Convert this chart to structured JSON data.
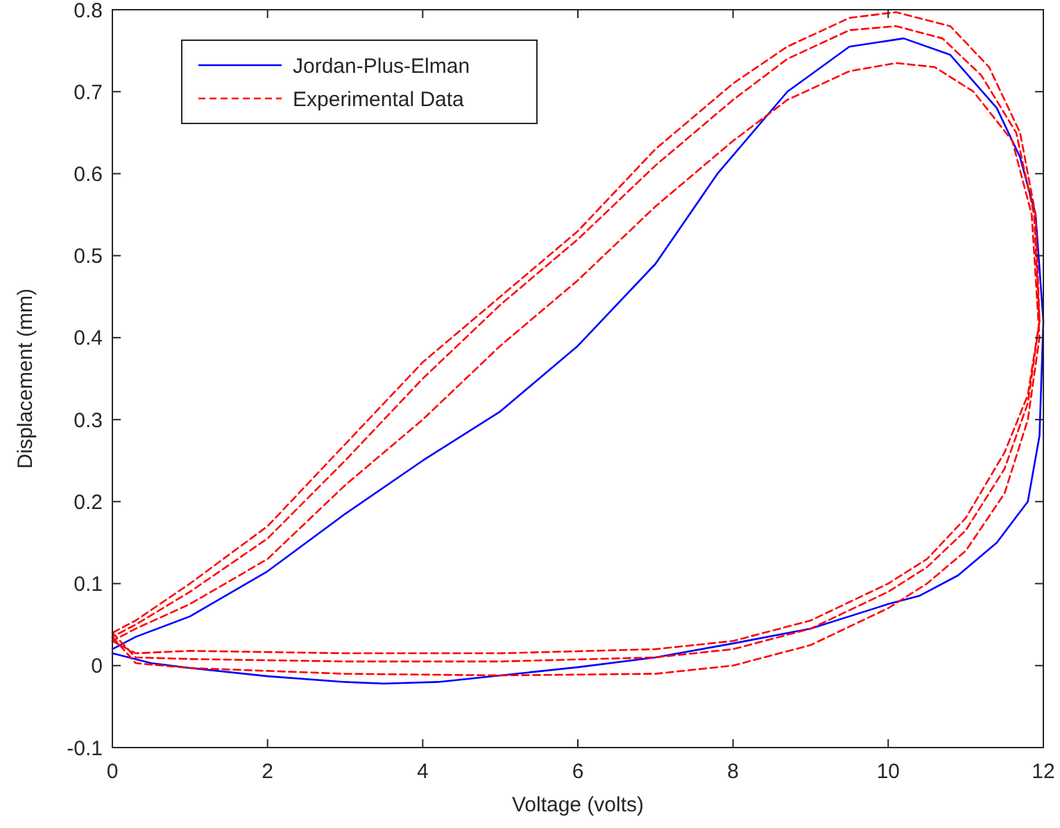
{
  "chart_data": {
    "type": "line",
    "xlabel": "Voltage (volts)",
    "ylabel": "Displacement (mm)",
    "xlim": [
      0,
      12
    ],
    "ylim": [
      -0.1,
      0.8
    ],
    "xticks": [
      0,
      2,
      4,
      6,
      8,
      10,
      12
    ],
    "yticks": [
      -0.1,
      0,
      0.1,
      0.2,
      0.3,
      0.4,
      0.5,
      0.6,
      0.7,
      0.8
    ],
    "legend": "top left",
    "grid": false,
    "series": [
      {
        "name": "Jordan-Plus-Elman",
        "color": "#0000ff",
        "line_style": "solid",
        "x": [
          0,
          0.5,
          1,
          2,
          3,
          3.5,
          4.2,
          5,
          6,
          7,
          8,
          9,
          10,
          10.4,
          10.9,
          11.4,
          11.8,
          11.95,
          12,
          11.9,
          11.7,
          11.4,
          10.8,
          10.2,
          9.5,
          8.7,
          7.8,
          7,
          6,
          5,
          4,
          3,
          2,
          1,
          0.3,
          0
        ],
        "values": [
          0.015,
          0.003,
          -0.003,
          -0.013,
          -0.02,
          -0.022,
          -0.02,
          -0.012,
          -0.002,
          0.01,
          0.027,
          0.045,
          0.075,
          0.085,
          0.11,
          0.15,
          0.2,
          0.28,
          0.42,
          0.55,
          0.62,
          0.68,
          0.745,
          0.765,
          0.755,
          0.7,
          0.6,
          0.49,
          0.39,
          0.31,
          0.25,
          0.185,
          0.115,
          0.06,
          0.035,
          0.02
        ]
      },
      {
        "name": "Experimental Data",
        "color": "#ff0000",
        "line_style": "dashed",
        "x": [
          0,
          0.3,
          1,
          3,
          5,
          7,
          8,
          9,
          10,
          10.5,
          11,
          11.5,
          11.8,
          11.95,
          11.9,
          11.7,
          11.3,
          10.8,
          10.1,
          9.5,
          8.7,
          8,
          7,
          6,
          5,
          4,
          3,
          2,
          1,
          0.3,
          0
        ],
        "values": [
          0.03,
          0.015,
          0.018,
          0.015,
          0.015,
          0.02,
          0.03,
          0.055,
          0.1,
          0.13,
          0.18,
          0.26,
          0.33,
          0.42,
          0.55,
          0.65,
          0.73,
          0.78,
          0.797,
          0.79,
          0.755,
          0.71,
          0.63,
          0.53,
          0.45,
          0.37,
          0.27,
          0.17,
          0.1,
          0.055,
          0.04
        ]
      },
      {
        "color": "#ff0000",
        "line_style": "dashed",
        "x": [
          0,
          0.3,
          1,
          3,
          5,
          7,
          8,
          9,
          10,
          10.5,
          11,
          11.5,
          11.8,
          11.95,
          11.88,
          11.65,
          11.2,
          10.7,
          10.1,
          9.5,
          8.7,
          8,
          7,
          6,
          5,
          4,
          3,
          2,
          1,
          0.3,
          0
        ],
        "values": [
          0.04,
          0.01,
          0.008,
          0.005,
          0.005,
          0.01,
          0.02,
          0.045,
          0.09,
          0.12,
          0.165,
          0.24,
          0.32,
          0.42,
          0.55,
          0.65,
          0.72,
          0.765,
          0.78,
          0.775,
          0.74,
          0.69,
          0.61,
          0.52,
          0.44,
          0.35,
          0.25,
          0.155,
          0.09,
          0.05,
          0.035
        ]
      },
      {
        "color": "#ff0000",
        "line_style": "dashed",
        "x": [
          0,
          0.3,
          1,
          3,
          5,
          7,
          8,
          9,
          10,
          10.5,
          11,
          11.5,
          11.8,
          11.95,
          11.85,
          11.6,
          11.1,
          10.6,
          10.1,
          9.5,
          8.7,
          8,
          7,
          6,
          5,
          4,
          3,
          2,
          1,
          0.3,
          0
        ],
        "values": [
          0.035,
          0.003,
          -0.003,
          -0.01,
          -0.012,
          -0.01,
          0,
          0.025,
          0.07,
          0.1,
          0.14,
          0.21,
          0.3,
          0.4,
          0.55,
          0.64,
          0.7,
          0.73,
          0.735,
          0.725,
          0.69,
          0.64,
          0.56,
          0.47,
          0.39,
          0.3,
          0.22,
          0.13,
          0.075,
          0.045,
          0.03
        ]
      }
    ]
  }
}
